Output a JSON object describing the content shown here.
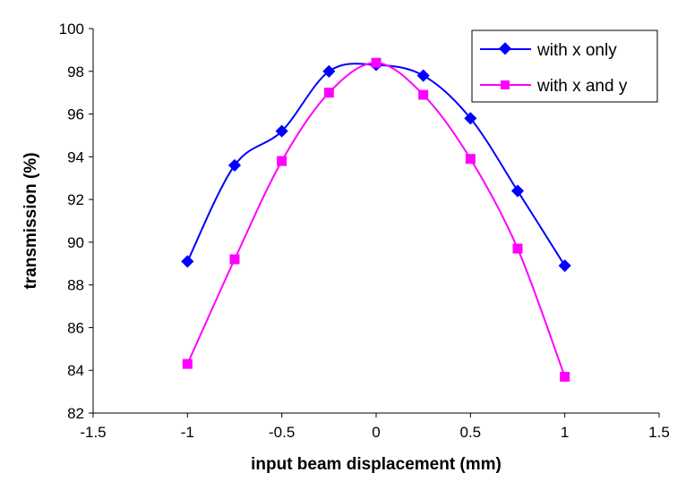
{
  "chart_data": {
    "type": "line",
    "xlabel": "input beam displacement (mm)",
    "ylabel": "transmission (%)",
    "xlim": [
      -1.5,
      1.5
    ],
    "ylim": [
      82,
      100
    ],
    "xticks": [
      -1.5,
      -1,
      -0.5,
      0,
      0.5,
      1,
      1.5
    ],
    "yticks": [
      82,
      84,
      86,
      88,
      90,
      92,
      94,
      96,
      98,
      100
    ],
    "grid": false,
    "legend": "top-right",
    "smooth": true,
    "x": [
      -1,
      -0.75,
      -0.5,
      -0.25,
      0,
      0.25,
      0.5,
      0.75,
      1
    ],
    "series": [
      {
        "name": "with x only",
        "color": "#0000FF",
        "marker": "diamond",
        "values": [
          89.1,
          93.6,
          95.2,
          98.0,
          98.3,
          97.8,
          95.8,
          92.4,
          88.9
        ]
      },
      {
        "name": "with x and y",
        "color": "#FF00FF",
        "marker": "square",
        "values": [
          84.3,
          89.2,
          93.8,
          97.0,
          98.4,
          96.9,
          93.9,
          89.7,
          83.7
        ]
      }
    ]
  }
}
